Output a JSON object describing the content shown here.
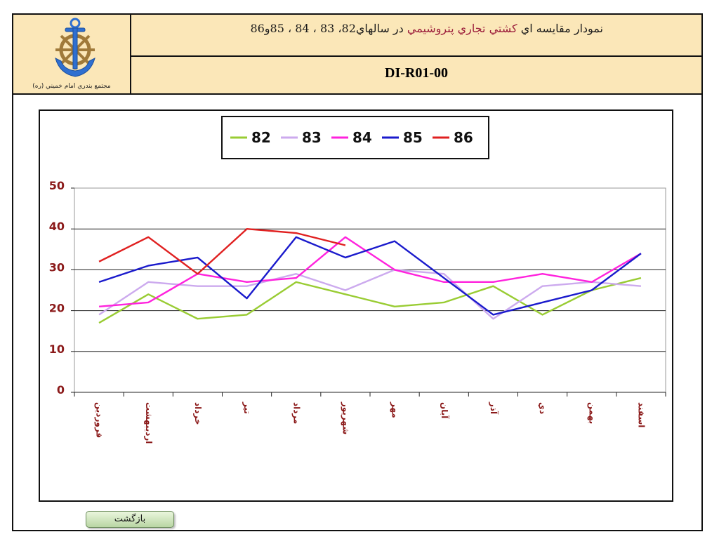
{
  "header": {
    "logo_caption": "مجتمع بندري امام خميني (ره)",
    "title_prefix": "نمودار مقايسه اي ",
    "title_highlight": "كشتي تجاري پتروشيمي",
    "title_suffix": " در سالهاي82، 83 ، 84 ، 85و86",
    "code": "DI-R01-00"
  },
  "footer": {
    "back_label": "بازگشت"
  },
  "colors": {
    "header_bg": "#fbe7b8",
    "tick_label": "#8b1a1a",
    "month_label": "#8b1a1a"
  },
  "chart_data": {
    "type": "line",
    "title": "",
    "xlabel": "",
    "ylabel": "",
    "ylim": [
      0,
      50
    ],
    "yticks": [
      0,
      10,
      20,
      30,
      40,
      50
    ],
    "grid": true,
    "legend_position": "top-center",
    "categories": [
      "فروردين",
      "ارديبهشت",
      "خرداد",
      "تير",
      "مرداد",
      "شهريور",
      "مهر",
      "آبان",
      "آذر",
      "دي",
      "بهمن",
      "اسفند"
    ],
    "series": [
      {
        "name": "82",
        "color": "#99cc33",
        "values": [
          17,
          24,
          18,
          19,
          27,
          24,
          21,
          22,
          26,
          19,
          25,
          28
        ]
      },
      {
        "name": "83",
        "color": "#ccaaee",
        "values": [
          19,
          27,
          26,
          26,
          29,
          25,
          30,
          29,
          18,
          26,
          27,
          26
        ]
      },
      {
        "name": "84",
        "color": "#ff22dd",
        "values": [
          21,
          22,
          29,
          27,
          28,
          38,
          30,
          27,
          27,
          29,
          27,
          34
        ]
      },
      {
        "name": "85",
        "color": "#1a1acc",
        "values": [
          27,
          31,
          33,
          23,
          38,
          33,
          37,
          28,
          19,
          22,
          25,
          34
        ]
      },
      {
        "name": "86",
        "color": "#e02020",
        "values": [
          32,
          38,
          29,
          40,
          39,
          36,
          null,
          null,
          null,
          null,
          null,
          null
        ]
      }
    ]
  }
}
